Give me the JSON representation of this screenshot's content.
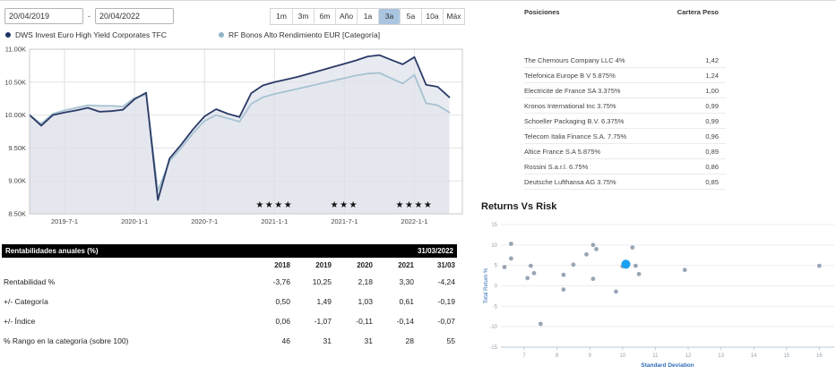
{
  "toolbar": {
    "date_from": "20/04/2019",
    "date_sep": "-",
    "date_to": "20/04/2022",
    "periods": [
      {
        "label": "1m",
        "selected": false
      },
      {
        "label": "3m",
        "selected": false
      },
      {
        "label": "6m",
        "selected": false
      },
      {
        "label": "Año",
        "selected": false
      },
      {
        "label": "1a",
        "selected": false
      },
      {
        "label": "3a",
        "selected": true
      },
      {
        "label": "5a",
        "selected": false
      },
      {
        "label": "10a",
        "selected": false
      },
      {
        "label": "Máx",
        "selected": false
      }
    ],
    "selected_color": "#aac5e0"
  },
  "legend": [
    {
      "label": "DWS Invest Euro High Yield Corporates TFC",
      "color": "#1d3461"
    },
    {
      "label": "RF Bonos Alto Rendimiento EUR [Categoría]",
      "color": "#8fb3c6"
    }
  ],
  "chart_data": [
    {
      "type": "line",
      "title": "Growth of investment",
      "x_start": "2019-04",
      "x_end": "2022-04",
      "x_interval": "monthly",
      "x_tick_labels": [
        "2019-7-1",
        "2020-1-1",
        "2020-7-1",
        "2021-1-1",
        "2021-7-1",
        "2022-1-1"
      ],
      "x_tick_months": [
        3,
        9,
        15,
        21,
        27,
        33
      ],
      "ylim": [
        8.5,
        11.0
      ],
      "y_ticks": [
        8.5,
        9.0,
        9.5,
        10.0,
        10.5,
        11.0
      ],
      "y_tick_labels": [
        "8.50K",
        "9.00K",
        "9.50K",
        "10.00K",
        "10.50K",
        "11.00K"
      ],
      "grid": true,
      "area_fill": "#e4e6ee",
      "series": [
        {
          "name": "RF Bonos Alto Rendimiento EUR [Categoría]",
          "color": "#a6c3d2",
          "values": [
            10.0,
            9.87,
            10.02,
            10.07,
            10.11,
            10.15,
            10.14,
            10.14,
            10.13,
            10.26,
            10.31,
            8.85,
            9.3,
            9.5,
            9.72,
            9.91,
            10.0,
            9.95,
            9.9,
            10.17,
            10.27,
            10.32,
            10.36,
            10.4,
            10.44,
            10.48,
            10.52,
            10.56,
            10.6,
            10.63,
            10.64,
            10.56,
            10.48,
            10.61,
            10.18,
            10.15,
            10.04
          ]
        },
        {
          "name": "DWS Invest Euro High Yield Corporates TFC",
          "color": "#2b3a66",
          "values": [
            10.0,
            9.84,
            10.0,
            10.04,
            10.07,
            10.11,
            10.05,
            10.06,
            10.08,
            10.24,
            10.34,
            8.71,
            9.34,
            9.55,
            9.78,
            9.98,
            10.09,
            10.02,
            9.97,
            10.33,
            10.45,
            10.5,
            10.54,
            10.58,
            10.63,
            10.68,
            10.73,
            10.78,
            10.83,
            10.89,
            10.91,
            10.84,
            10.77,
            10.88,
            10.46,
            10.43,
            10.27
          ]
        }
      ],
      "star_ratings": [
        {
          "month": 21,
          "stars": 4
        },
        {
          "month": 27,
          "stars": 3
        },
        {
          "month": 33,
          "stars": 4
        }
      ],
      "star_char": "★"
    },
    {
      "type": "scatter",
      "title": "Returns Vs Risk",
      "xlabel": "Standard Deviation",
      "ylabel": "Total Return %",
      "xlim": [
        6.0,
        16.8
      ],
      "x_ticks": [
        7,
        8,
        9,
        10,
        11,
        12,
        13,
        14,
        15,
        16
      ],
      "ylim": [
        -15,
        15
      ],
      "y_ticks": [
        15,
        10,
        5,
        0,
        -5,
        -10,
        -15
      ],
      "grid": "horizontal",
      "point_color": "#8695a8",
      "highlight_color": "#19a0f0",
      "points": [
        [
          6.4,
          4.6
        ],
        [
          6.6,
          10.3
        ],
        [
          6.6,
          6.7
        ],
        [
          7.1,
          1.9
        ],
        [
          7.2,
          4.9
        ],
        [
          7.3,
          3.1
        ],
        [
          7.5,
          -9.3
        ],
        [
          8.2,
          2.7
        ],
        [
          8.2,
          -0.9
        ],
        [
          8.5,
          5.2
        ],
        [
          8.9,
          7.7
        ],
        [
          9.1,
          1.7
        ],
        [
          9.1,
          10.0
        ],
        [
          9.2,
          9.0
        ],
        [
          9.8,
          -1.4
        ],
        [
          10.0,
          4.8
        ],
        [
          10.3,
          9.4
        ],
        [
          10.4,
          4.9
        ],
        [
          10.5,
          2.9
        ],
        [
          11.9,
          3.9
        ],
        [
          16.0,
          4.9
        ]
      ],
      "highlight_point": [
        10.1,
        5.3
      ]
    }
  ],
  "returns_table": {
    "title": "Rentabilidades anuales (%)",
    "as_of": "31/03/2022",
    "columns": [
      "2018",
      "2019",
      "2020",
      "2021",
      "31/03"
    ],
    "rows": [
      {
        "label": "Rentabilidad %",
        "values": [
          "-3,76",
          "10,25",
          "2,18",
          "3,30",
          "-4,24"
        ]
      },
      {
        "label": "+/- Categoría",
        "values": [
          "0,50",
          "1,49",
          "1,03",
          "0,61",
          "-0,19"
        ]
      },
      {
        "label": "+/- Índice",
        "values": [
          "0,06",
          "-1,07",
          "-0,11",
          "-0,14",
          "-0,07"
        ]
      },
      {
        "label": "% Rango en la categoría (sobre 100)",
        "values": [
          "46",
          "31",
          "31",
          "28",
          "55"
        ]
      }
    ]
  },
  "positions": {
    "title": "Posiciones",
    "weight_header": "Cartera Peso",
    "rows": [
      {
        "name": "The Chemours Company LLC 4%",
        "weight": "1,42"
      },
      {
        "name": "Telefonica Europe B V 5.875%",
        "weight": "1,24"
      },
      {
        "name": "Electricite de France SA 3.375%",
        "weight": "1,00"
      },
      {
        "name": "Kronos International Inc 3.75%",
        "weight": "0,99"
      },
      {
        "name": "Schoeller Packaging B.V. 6.375%",
        "weight": "0,99"
      },
      {
        "name": "Telecom Italia Finance S.A. 7.75%",
        "weight": "0,96"
      },
      {
        "name": "Altice France S.A 5.875%",
        "weight": "0,89"
      },
      {
        "name": "Rossini S.a.r.l. 6.75%",
        "weight": "0,86"
      },
      {
        "name": "Deutsche Lufthansa AG 3.75%",
        "weight": "0,85"
      }
    ]
  },
  "risk_section": {
    "title": "Returns Vs Risk"
  }
}
